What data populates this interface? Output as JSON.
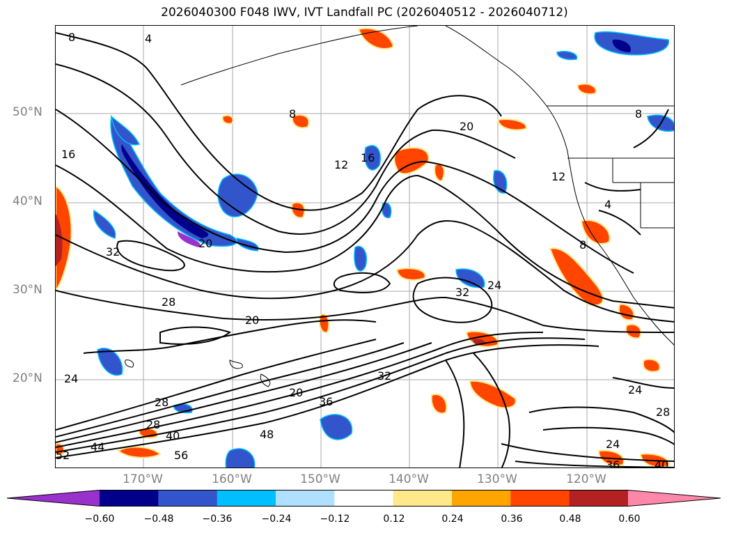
{
  "title": "2026040300 F048 IWV, IVT Landfall PC (2026040512 - 2026040712)",
  "latitude_labels": [
    "50°N",
    "40°N",
    "30°N",
    "20°N"
  ],
  "longitude_labels": [
    "170°W",
    "160°W",
    "150°W",
    "140°W",
    "130°W",
    "120°W"
  ],
  "contour_labels": [
    "8",
    "4",
    "16",
    "8",
    "12",
    "16",
    "20",
    "32",
    "20",
    "28",
    "20",
    "32",
    "24",
    "24",
    "28",
    "20",
    "36",
    "32",
    "48",
    "40",
    "56",
    "44",
    "52",
    "28",
    "24",
    "12",
    "4",
    "8",
    "36",
    "40",
    "28",
    "24",
    "8"
  ],
  "colorbar": {
    "colors": [
      "#9932cc",
      "#00008b",
      "#3355cc",
      "#00bfff",
      "#b0e0ff",
      "#ffffff",
      "#ffe88a",
      "#ffa500",
      "#ff4500",
      "#b22222",
      "#ff88aa"
    ],
    "tick_labels": [
      "−0.60",
      "−0.48",
      "−0.36",
      "−0.24",
      "−0.12",
      "0.12",
      "0.24",
      "0.36",
      "0.48",
      "0.60"
    ]
  },
  "chart_data": {
    "type": "map",
    "projection": "lat-lon",
    "lat_range": [
      "10°N",
      "60°N"
    ],
    "lon_range": [
      "180°",
      "110°W"
    ],
    "grid": true,
    "fields": [
      "IWV (contours)",
      "IVT Landfall PC (shaded)"
    ],
    "contour_levels_shown": [
      4,
      8,
      12,
      16,
      20,
      24,
      28,
      32,
      36,
      40,
      44,
      48,
      52,
      56
    ],
    "shading_levels": [
      -0.6,
      -0.48,
      -0.36,
      -0.24,
      -0.12,
      0.12,
      0.24,
      0.36,
      0.48,
      0.6
    ]
  }
}
